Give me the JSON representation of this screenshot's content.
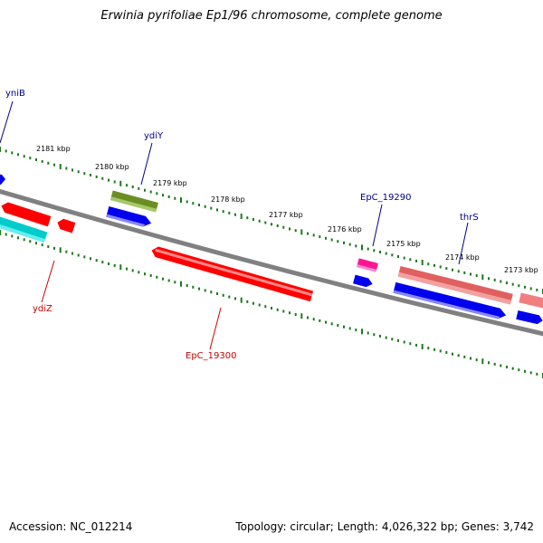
{
  "title": "Erwinia pyrifoliae Ep1/96 chromosome, complete genome",
  "footer": {
    "accession": "Accession: NC_012214",
    "topology": "Topology: circular; Length: 4,026,322 bp; Genes: 3,742"
  },
  "colors": {
    "backbone": "#808080",
    "ticks": "#1a7a1a",
    "forward_label": "#00008b",
    "reverse_label": "#cc0000",
    "blue": "#0000ee",
    "olive": "#6b8e23",
    "red": "#ff0000",
    "cyan": "#00cccc",
    "magenta": "#ff1493",
    "salmon": "#f08080"
  },
  "ruler_labels": [
    "2181 kbp",
    "2180 kbp",
    "2179 kbp",
    "2178 kbp",
    "2177 kbp",
    "2176 kbp",
    "2175 kbp",
    "2174 kbp",
    "2173 kbp"
  ],
  "gene_labels": {
    "ynib": "yniB",
    "ydiy": "ydiY",
    "epc19290": "EpC_19290",
    "thrs": "thrS",
    "ydiz": "ydiZ",
    "epc19300": "EpC_19300"
  }
}
